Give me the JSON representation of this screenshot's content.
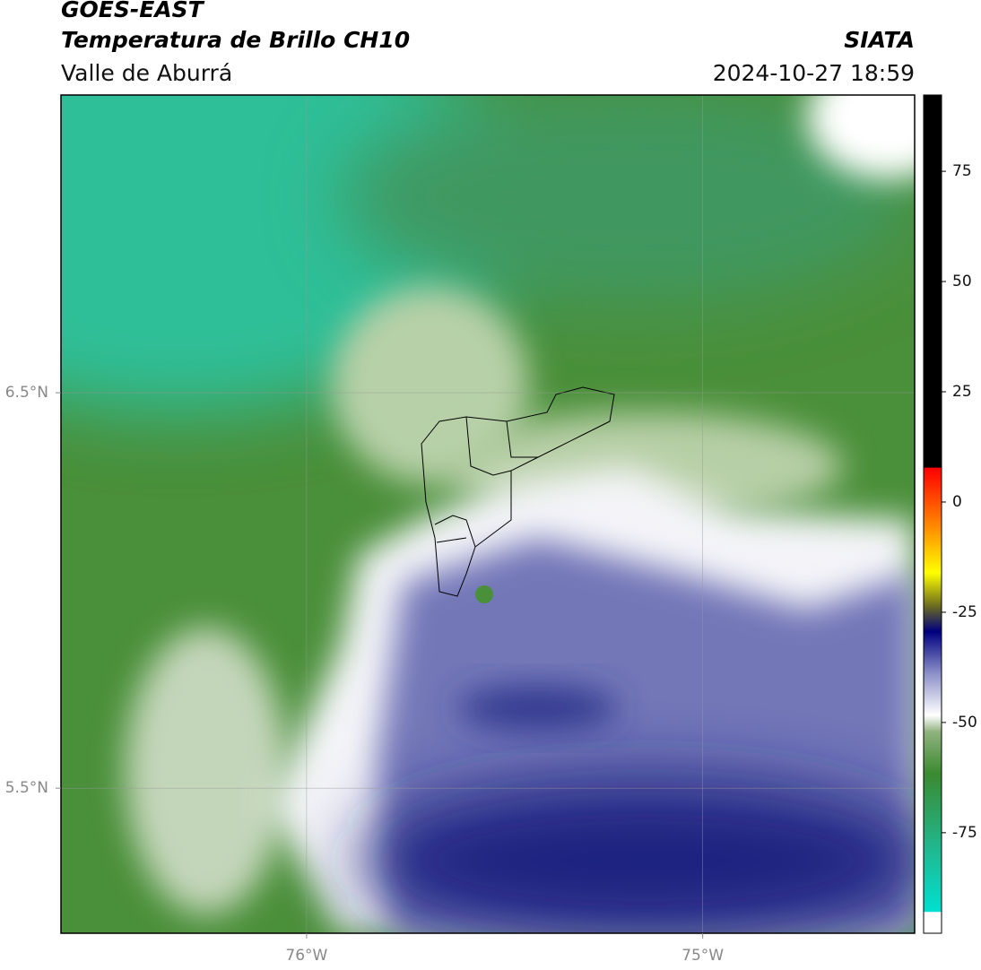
{
  "header": {
    "title": "GOES-EAST",
    "subtitle": "Temperatura de Brillo CH10",
    "region": "Valle de Aburrá",
    "source": "SIATA",
    "datetime": "2024-10-27 18:59"
  },
  "map": {
    "xlim": [
      -76.62,
      -74.465
    ],
    "ylim": [
      5.133,
      7.253
    ],
    "lon_labels": [
      {
        "value": -76,
        "label": "76°W"
      },
      {
        "value": -75,
        "label": "75°W"
      }
    ],
    "lat_labels": [
      {
        "value": 6.5,
        "label": "6.5°N"
      },
      {
        "value": 5.5,
        "label": "5.5°N"
      }
    ]
  },
  "colorbar": {
    "lim": [
      -97.8,
      92.3
    ],
    "ticks": [
      75,
      50,
      25,
      0,
      -25,
      -50,
      -75
    ]
  }
}
